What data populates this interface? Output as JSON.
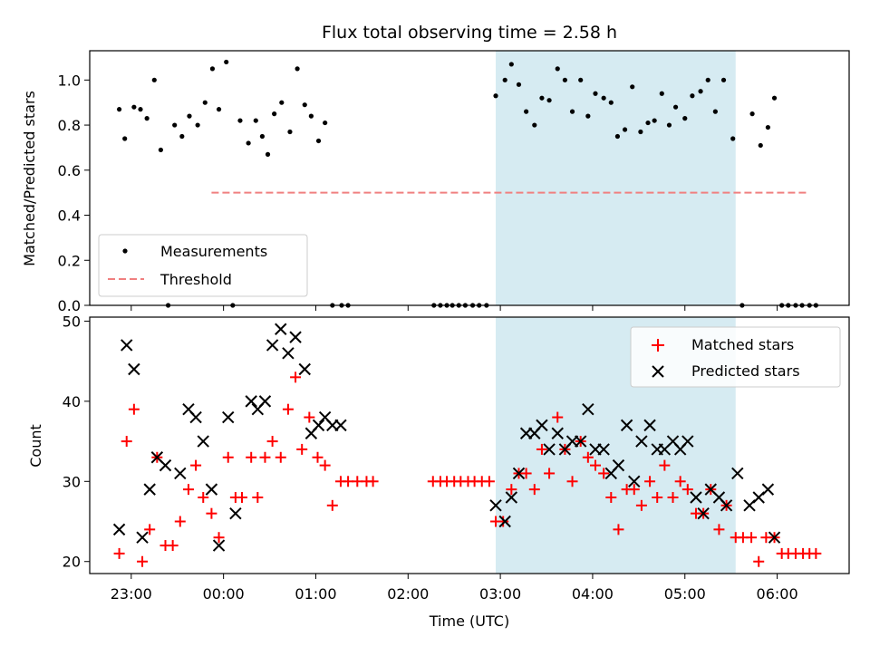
{
  "chart_data": [
    {
      "type": "scatter",
      "title": "Flux total observing time = 2.58 h",
      "ylabel": "Matched/Predicted stars",
      "xlabel": "",
      "ylim": [
        0,
        1.13
      ],
      "yticks": [
        "0.0",
        "0.2",
        "0.4",
        "0.6",
        "0.8",
        "1.0"
      ],
      "xlim_hours": [
        -1.45,
        6.78
      ],
      "grid": false,
      "legend_position": "lower-left",
      "shaded_region_hours": [
        2.95,
        5.55
      ],
      "threshold": {
        "name": "Threshold",
        "value": 0.5,
        "x_range_hours": [
          -0.13,
          6.32
        ],
        "color": "#f08080"
      },
      "series": [
        {
          "name": "Measurements",
          "color": "#000000",
          "points": [
            [
              -1.13,
              0.87
            ],
            [
              -1.07,
              0.74
            ],
            [
              -0.97,
              0.88
            ],
            [
              -0.9,
              0.87
            ],
            [
              -0.83,
              0.83
            ],
            [
              -0.75,
              1.0
            ],
            [
              -0.68,
              0.69
            ],
            [
              -0.6,
              0
            ],
            [
              -0.53,
              0.8
            ],
            [
              -0.45,
              0.75
            ],
            [
              -0.37,
              0.84
            ],
            [
              -0.28,
              0.8
            ],
            [
              -0.2,
              0.9
            ],
            [
              -0.12,
              1.05
            ],
            [
              -0.05,
              0.87
            ],
            [
              0.03,
              1.08
            ],
            [
              0.1,
              0
            ],
            [
              0.18,
              0.82
            ],
            [
              0.27,
              0.72
            ],
            [
              0.35,
              0.82
            ],
            [
              0.42,
              0.75
            ],
            [
              0.48,
              0.67
            ],
            [
              0.55,
              0.85
            ],
            [
              0.63,
              0.9
            ],
            [
              0.72,
              0.77
            ],
            [
              0.8,
              1.05
            ],
            [
              0.88,
              0.89
            ],
            [
              0.95,
              0.84
            ],
            [
              1.03,
              0.73
            ],
            [
              1.1,
              0.81
            ],
            [
              1.18,
              0
            ],
            [
              1.28,
              0
            ],
            [
              1.35,
              0
            ],
            [
              2.28,
              0
            ],
            [
              2.35,
              0
            ],
            [
              2.42,
              0
            ],
            [
              2.48,
              0
            ],
            [
              2.55,
              0
            ],
            [
              2.62,
              0
            ],
            [
              2.7,
              0
            ],
            [
              2.77,
              0
            ],
            [
              2.85,
              0
            ],
            [
              2.95,
              0.93
            ],
            [
              3.05,
              1.0
            ],
            [
              3.12,
              1.07
            ],
            [
              3.2,
              0.98
            ],
            [
              3.28,
              0.86
            ],
            [
              3.37,
              0.8
            ],
            [
              3.45,
              0.92
            ],
            [
              3.53,
              0.91
            ],
            [
              3.62,
              1.05
            ],
            [
              3.7,
              1.0
            ],
            [
              3.78,
              0.86
            ],
            [
              3.87,
              1.0
            ],
            [
              3.95,
              0.84
            ],
            [
              4.03,
              0.94
            ],
            [
              4.12,
              0.92
            ],
            [
              4.2,
              0.9
            ],
            [
              4.27,
              0.75
            ],
            [
              4.35,
              0.78
            ],
            [
              4.43,
              0.97
            ],
            [
              4.52,
              0.77
            ],
            [
              4.6,
              0.81
            ],
            [
              4.67,
              0.82
            ],
            [
              4.75,
              0.94
            ],
            [
              4.83,
              0.8
            ],
            [
              4.9,
              0.88
            ],
            [
              5.0,
              0.83
            ],
            [
              5.08,
              0.93
            ],
            [
              5.17,
              0.95
            ],
            [
              5.25,
              1.0
            ],
            [
              5.33,
              0.86
            ],
            [
              5.42,
              1.0
            ],
            [
              5.52,
              0.74
            ],
            [
              5.62,
              0
            ],
            [
              5.73,
              0.85
            ],
            [
              5.82,
              0.71
            ],
            [
              5.9,
              0.79
            ],
            [
              5.97,
              0.92
            ],
            [
              6.05,
              0
            ],
            [
              6.12,
              0
            ],
            [
              6.2,
              0
            ],
            [
              6.27,
              0
            ],
            [
              6.35,
              0
            ],
            [
              6.42,
              0
            ]
          ]
        }
      ]
    },
    {
      "type": "scatter",
      "title": "",
      "ylabel": "Count",
      "xlabel": "Time (UTC)",
      "ylim": [
        18.5,
        50.5
      ],
      "yticks": [
        "20",
        "30",
        "40",
        "50"
      ],
      "xlim_hours": [
        -1.45,
        6.78
      ],
      "xticks": [
        {
          "hour": -1,
          "label": "23:00"
        },
        {
          "hour": 0,
          "label": "00:00"
        },
        {
          "hour": 1,
          "label": "01:00"
        },
        {
          "hour": 2,
          "label": "02:00"
        },
        {
          "hour": 3,
          "label": "03:00"
        },
        {
          "hour": 4,
          "label": "04:00"
        },
        {
          "hour": 5,
          "label": "05:00"
        },
        {
          "hour": 6,
          "label": "06:00"
        }
      ],
      "grid": false,
      "legend_position": "upper-right",
      "shaded_region_hours": [
        2.95,
        5.55
      ],
      "series": [
        {
          "name": "Matched stars",
          "color": "#ff0000",
          "marker": "plus",
          "points": [
            [
              -1.13,
              21
            ],
            [
              -1.05,
              35
            ],
            [
              -0.97,
              39
            ],
            [
              -0.88,
              20
            ],
            [
              -0.8,
              24
            ],
            [
              -0.72,
              33
            ],
            [
              -0.63,
              22
            ],
            [
              -0.55,
              22
            ],
            [
              -0.47,
              25
            ],
            [
              -0.38,
              29
            ],
            [
              -0.3,
              32
            ],
            [
              -0.22,
              28
            ],
            [
              -0.13,
              26
            ],
            [
              -0.05,
              23
            ],
            [
              0.05,
              33
            ],
            [
              0.13,
              28
            ],
            [
              0.2,
              28
            ],
            [
              0.3,
              33
            ],
            [
              0.37,
              28
            ],
            [
              0.45,
              33
            ],
            [
              0.53,
              35
            ],
            [
              0.62,
              33
            ],
            [
              0.7,
              39
            ],
            [
              0.78,
              43
            ],
            [
              0.85,
              34
            ],
            [
              0.93,
              38
            ],
            [
              1.02,
              33
            ],
            [
              1.1,
              32
            ],
            [
              1.18,
              27
            ],
            [
              1.27,
              30
            ],
            [
              1.35,
              30
            ],
            [
              1.45,
              30
            ],
            [
              1.55,
              30
            ],
            [
              1.62,
              30
            ],
            [
              2.27,
              30
            ],
            [
              2.35,
              30
            ],
            [
              2.42,
              30
            ],
            [
              2.5,
              30
            ],
            [
              2.57,
              30
            ],
            [
              2.65,
              30
            ],
            [
              2.72,
              30
            ],
            [
              2.8,
              30
            ],
            [
              2.88,
              30
            ],
            [
              2.95,
              25
            ],
            [
              3.03,
              25
            ],
            [
              3.12,
              29
            ],
            [
              3.2,
              31
            ],
            [
              3.28,
              31
            ],
            [
              3.37,
              29
            ],
            [
              3.45,
              34
            ],
            [
              3.53,
              31
            ],
            [
              3.62,
              38
            ],
            [
              3.7,
              34
            ],
            [
              3.78,
              30
            ],
            [
              3.87,
              35
            ],
            [
              3.95,
              33
            ],
            [
              4.03,
              32
            ],
            [
              4.12,
              31
            ],
            [
              4.2,
              28
            ],
            [
              4.28,
              24
            ],
            [
              4.37,
              29
            ],
            [
              4.45,
              29
            ],
            [
              4.53,
              27
            ],
            [
              4.62,
              30
            ],
            [
              4.7,
              28
            ],
            [
              4.78,
              32
            ],
            [
              4.87,
              28
            ],
            [
              4.95,
              30
            ],
            [
              5.03,
              29
            ],
            [
              5.12,
              26
            ],
            [
              5.2,
              26
            ],
            [
              5.28,
              29
            ],
            [
              5.37,
              24
            ],
            [
              5.45,
              27
            ],
            [
              5.55,
              23
            ],
            [
              5.63,
              23
            ],
            [
              5.72,
              23
            ],
            [
              5.8,
              20
            ],
            [
              5.88,
              23
            ],
            [
              5.97,
              23
            ],
            [
              6.05,
              21
            ],
            [
              6.12,
              21
            ],
            [
              6.2,
              21
            ],
            [
              6.28,
              21
            ],
            [
              6.35,
              21
            ],
            [
              6.42,
              21
            ]
          ]
        },
        {
          "name": "Predicted stars",
          "color": "#000000",
          "marker": "x",
          "points": [
            [
              -1.13,
              24
            ],
            [
              -1.05,
              47
            ],
            [
              -0.97,
              44
            ],
            [
              -0.88,
              23
            ],
            [
              -0.8,
              29
            ],
            [
              -0.72,
              33
            ],
            [
              -0.63,
              32
            ],
            [
              -0.47,
              31
            ],
            [
              -0.38,
              39
            ],
            [
              -0.3,
              38
            ],
            [
              -0.22,
              35
            ],
            [
              -0.13,
              29
            ],
            [
              -0.05,
              22
            ],
            [
              0.05,
              38
            ],
            [
              0.13,
              26
            ],
            [
              0.3,
              40
            ],
            [
              0.37,
              39
            ],
            [
              0.45,
              40
            ],
            [
              0.53,
              47
            ],
            [
              0.62,
              49
            ],
            [
              0.7,
              46
            ],
            [
              0.78,
              48
            ],
            [
              0.88,
              44
            ],
            [
              0.95,
              36
            ],
            [
              1.03,
              37
            ],
            [
              1.1,
              38
            ],
            [
              1.18,
              37
            ],
            [
              1.27,
              37
            ],
            [
              2.95,
              27
            ],
            [
              3.05,
              25
            ],
            [
              3.12,
              28
            ],
            [
              3.2,
              31
            ],
            [
              3.28,
              36
            ],
            [
              3.37,
              36
            ],
            [
              3.45,
              37
            ],
            [
              3.53,
              34
            ],
            [
              3.62,
              36
            ],
            [
              3.7,
              34
            ],
            [
              3.78,
              35
            ],
            [
              3.87,
              35
            ],
            [
              3.95,
              39
            ],
            [
              4.03,
              34
            ],
            [
              4.12,
              34
            ],
            [
              4.2,
              31
            ],
            [
              4.28,
              32
            ],
            [
              4.37,
              37
            ],
            [
              4.45,
              30
            ],
            [
              4.53,
              35
            ],
            [
              4.62,
              37
            ],
            [
              4.7,
              34
            ],
            [
              4.78,
              34
            ],
            [
              4.87,
              35
            ],
            [
              4.95,
              34
            ],
            [
              5.03,
              35
            ],
            [
              5.12,
              28
            ],
            [
              5.2,
              26
            ],
            [
              5.28,
              29
            ],
            [
              5.37,
              28
            ],
            [
              5.45,
              27
            ],
            [
              5.57,
              31
            ],
            [
              5.7,
              27
            ],
            [
              5.8,
              28
            ],
            [
              5.9,
              29
            ],
            [
              5.97,
              23
            ]
          ]
        }
      ]
    }
  ]
}
